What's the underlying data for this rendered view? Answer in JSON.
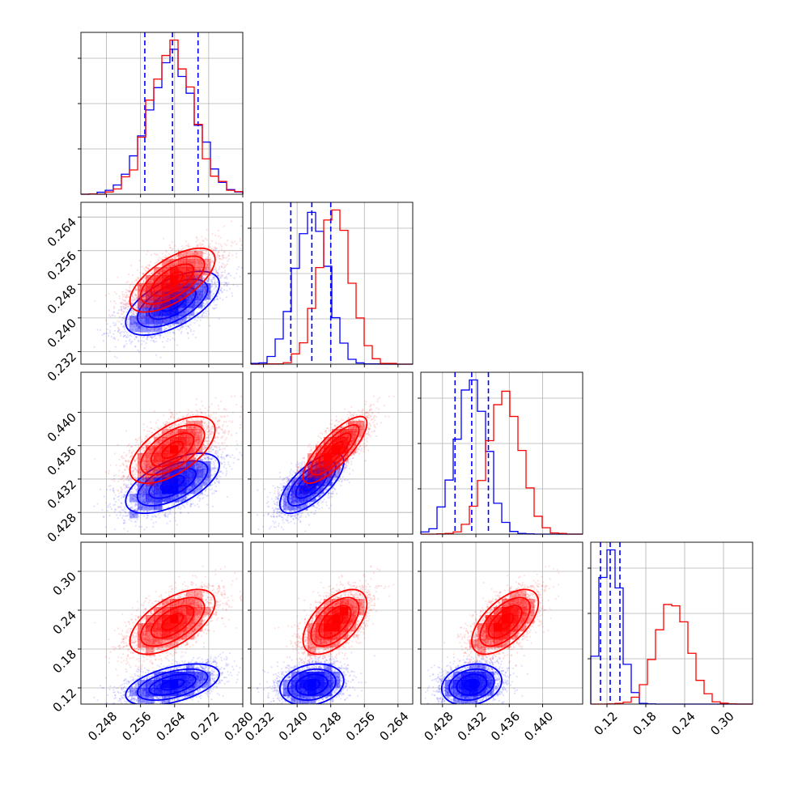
{
  "chart_data": {
    "type": "corner",
    "title": "",
    "grid": true,
    "dimensions": 4,
    "series": [
      {
        "color": "#0000ff",
        "means": [
          0.2635,
          0.2435,
          0.4315,
          0.125
        ],
        "sds": [
          0.0055,
          0.0038,
          0.0018,
          0.016
        ],
        "correlations": [
          [
            1,
            0.6,
            0.6,
            0.5
          ],
          [
            0.6,
            1,
            0.7,
            0.2
          ],
          [
            0.6,
            0.7,
            1,
            0.2
          ],
          [
            0.5,
            0.2,
            0.2,
            1
          ]
        ],
        "quantiles": [
          [
            0.257,
            0.2635,
            0.2695
          ],
          [
            0.2385,
            0.2435,
            0.248
          ],
          [
            0.4295,
            0.4315,
            0.4335
          ],
          [
            0.11,
            0.125,
            0.14
          ]
        ]
      },
      {
        "color": "#ff0000",
        "means": [
          0.2635,
          0.249,
          0.4355,
          0.222
        ],
        "sds": [
          0.005,
          0.0038,
          0.002,
          0.025
        ],
        "correlations": [
          [
            1,
            0.65,
            0.6,
            0.6
          ],
          [
            0.65,
            1,
            0.8,
            0.55
          ],
          [
            0.6,
            0.8,
            1,
            0.6
          ],
          [
            0.6,
            0.55,
            0.6,
            1
          ]
        ]
      }
    ],
    "axes": [
      {
        "range": [
          0.242,
          0.28
        ],
        "ticks": [
          "0.248",
          "0.256",
          "0.264",
          "0.272",
          "0.280"
        ]
      },
      {
        "range": [
          0.229,
          0.2675
        ],
        "ticks": [
          "0.232",
          "0.240",
          "0.248",
          "0.256",
          "0.264"
        ]
      },
      {
        "range": [
          0.4254,
          0.4448
        ],
        "ticks": [
          "0.428",
          "0.432",
          "0.436",
          "0.440"
        ]
      },
      {
        "range": [
          0.095,
          0.345
        ],
        "ticks": [
          "0.12",
          "0.18",
          "0.24",
          "0.30"
        ]
      }
    ],
    "scatter_points_per_series": 3000,
    "histogram_bins": 20
  }
}
